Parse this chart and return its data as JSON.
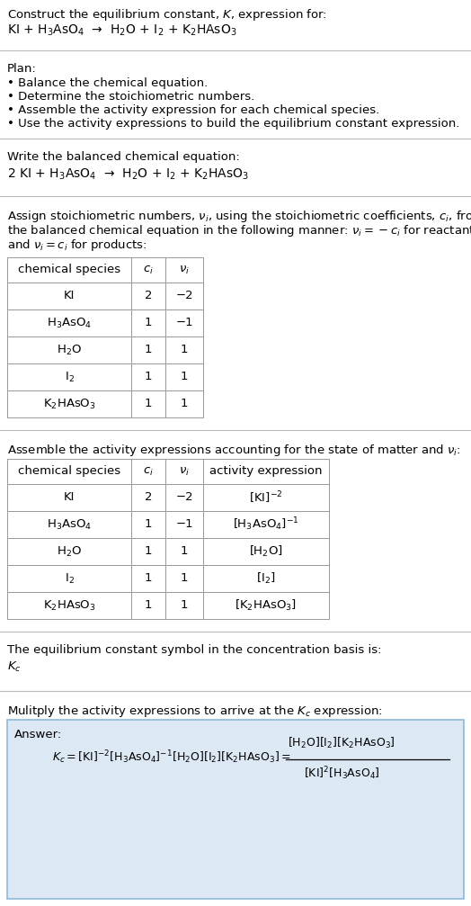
{
  "title_line1": "Construct the equilibrium constant, $K$, expression for:",
  "title_line2": "KI + H$_3$AsO$_4$  →  H$_2$O + I$_2$ + K$_2$HAsO$_3$",
  "plan_header": "Plan:",
  "plan_items": [
    "• Balance the chemical equation.",
    "• Determine the stoichiometric numbers.",
    "• Assemble the activity expression for each chemical species.",
    "• Use the activity expressions to build the equilibrium constant expression."
  ],
  "balanced_header": "Write the balanced chemical equation:",
  "balanced_eq": "2 KI + H$_3$AsO$_4$  →  H$_2$O + I$_2$ + K$_2$HAsO$_3$",
  "stoich_lines": [
    "Assign stoichiometric numbers, $\\nu_i$, using the stoichiometric coefficients, $c_i$, from",
    "the balanced chemical equation in the following manner: $\\nu_i = -c_i$ for reactants",
    "and $\\nu_i = c_i$ for products:"
  ],
  "table1_headers": [
    "chemical species",
    "$c_i$",
    "$\\nu_i$"
  ],
  "table1_rows": [
    [
      "KI",
      "2",
      "−2"
    ],
    [
      "H$_3$AsO$_4$",
      "1",
      "−1"
    ],
    [
      "H$_2$O",
      "1",
      "1"
    ],
    [
      "I$_2$",
      "1",
      "1"
    ],
    [
      "K$_2$HAsO$_3$",
      "1",
      "1"
    ]
  ],
  "activity_header": "Assemble the activity expressions accounting for the state of matter and $\\nu_i$:",
  "table2_headers": [
    "chemical species",
    "$c_i$",
    "$\\nu_i$",
    "activity expression"
  ],
  "table2_rows": [
    [
      "KI",
      "2",
      "−2",
      "[KI]$^{-2}$"
    ],
    [
      "H$_3$AsO$_4$",
      "1",
      "−1",
      "[H$_3$AsO$_4$]$^{-1}$"
    ],
    [
      "H$_2$O",
      "1",
      "1",
      "[H$_2$O]"
    ],
    [
      "I$_2$",
      "1",
      "1",
      "[I$_2$]"
    ],
    [
      "K$_2$HAsO$_3$",
      "1",
      "1",
      "[K$_2$HAsO$_3$]"
    ]
  ],
  "kc_symbol_header": "The equilibrium constant symbol in the concentration basis is:",
  "kc_symbol": "$K_c$",
  "multiply_header": "Mulitply the activity expressions to arrive at the $K_c$ expression:",
  "answer_label": "Answer:",
  "answer_box_color": "#dce9f5",
  "answer_box_border": "#90b8d8",
  "bg_color": "#ffffff",
  "text_color": "#000000",
  "sep_color": "#bbbbbb",
  "table_edge_color": "#999999",
  "font_size": 9.5
}
